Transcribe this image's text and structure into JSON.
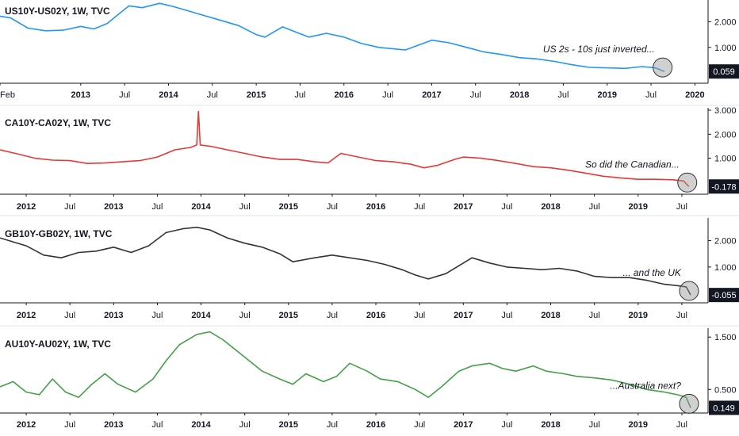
{
  "chart_data": [
    {
      "type": "line",
      "title": "US10Y-US02Y, 1W, TVC",
      "color": "#2196f3",
      "axis_ticks": [
        "2.000",
        "1.000"
      ],
      "axis_tick_values": [
        2.0,
        1.0
      ],
      "ylim": [
        -0.4,
        2.85
      ],
      "last_value_label": "0.059",
      "last_value": 0.059,
      "annotation": "US 2s - 10s just inverted...",
      "x_labels": [
        "Feb",
        "2013",
        "Jul",
        "2014",
        "Jul",
        "2015",
        "Jul",
        "2016",
        "Jul",
        "2017",
        "Jul",
        "2018",
        "Jul",
        "2019",
        "Jul",
        "2020"
      ],
      "x_label_dates": [
        2012.08,
        2013.0,
        2013.5,
        2014.0,
        2014.5,
        2015.0,
        2015.5,
        2016.0,
        2016.5,
        2017.0,
        2017.5,
        2018.0,
        2018.5,
        2019.0,
        2019.5,
        2020.0
      ],
      "xlim": [
        2012.08,
        2020.15
      ],
      "x": [
        2012.08,
        2012.2,
        2012.4,
        2012.6,
        2012.8,
        2013.0,
        2013.15,
        2013.3,
        2013.45,
        2013.55,
        2013.7,
        2013.9,
        2014.05,
        2014.2,
        2014.4,
        2014.6,
        2014.8,
        2015.0,
        2015.1,
        2015.3,
        2015.45,
        2015.6,
        2015.8,
        2016.0,
        2016.2,
        2016.4,
        2016.55,
        2016.7,
        2016.9,
        2017.0,
        2017.2,
        2017.4,
        2017.6,
        2017.8,
        2018.0,
        2018.2,
        2018.4,
        2018.6,
        2018.8,
        2019.0,
        2019.2,
        2019.4,
        2019.55,
        2019.65
      ],
      "values": [
        2.22,
        2.15,
        1.75,
        1.65,
        1.67,
        1.82,
        1.72,
        1.93,
        2.35,
        2.62,
        2.55,
        2.72,
        2.6,
        2.45,
        2.25,
        2.05,
        1.85,
        1.5,
        1.4,
        1.8,
        1.6,
        1.4,
        1.55,
        1.4,
        1.15,
        1.0,
        0.95,
        0.9,
        1.15,
        1.28,
        1.18,
        1.0,
        0.82,
        0.72,
        0.6,
        0.55,
        0.45,
        0.32,
        0.22,
        0.2,
        0.18,
        0.25,
        0.2,
        0.06
      ]
    },
    {
      "type": "line",
      "title": "CA10Y-CA02Y, 1W, TVC",
      "color": "#e53935",
      "axis_ticks": [
        "3.000",
        "2.000",
        "1.000"
      ],
      "axis_tick_values": [
        3.0,
        2.0,
        1.0
      ],
      "ylim": [
        -0.5,
        3.1
      ],
      "last_value_label": "-0.178",
      "last_value": -0.178,
      "annotation": "So did the Canadian...",
      "x_labels": [
        "2012",
        "Jul",
        "2013",
        "Jul",
        "2014",
        "Jul",
        "2015",
        "Jul",
        "2016",
        "Jul",
        "2017",
        "Jul",
        "2018",
        "Jul",
        "2019",
        "Jul"
      ],
      "x_label_dates": [
        2012.0,
        2012.5,
        2013.0,
        2013.5,
        2014.0,
        2014.5,
        2015.0,
        2015.5,
        2016.0,
        2016.5,
        2017.0,
        2017.5,
        2018.0,
        2018.5,
        2019.0,
        2019.5
      ],
      "xlim": [
        2011.7,
        2019.8
      ],
      "x": [
        2011.7,
        2011.9,
        2012.1,
        2012.3,
        2012.5,
        2012.7,
        2012.9,
        2013.1,
        2013.3,
        2013.5,
        2013.7,
        2013.88,
        2013.95,
        2013.97,
        2013.99,
        2014.1,
        2014.3,
        2014.5,
        2014.7,
        2014.9,
        2015.1,
        2015.3,
        2015.45,
        2015.6,
        2015.8,
        2016.0,
        2016.2,
        2016.4,
        2016.55,
        2016.7,
        2016.9,
        2017.0,
        2017.2,
        2017.4,
        2017.6,
        2017.8,
        2018.0,
        2018.2,
        2018.4,
        2018.6,
        2018.8,
        2019.0,
        2019.2,
        2019.4,
        2019.52,
        2019.58
      ],
      "values": [
        1.35,
        1.18,
        1.0,
        0.92,
        0.9,
        0.78,
        0.8,
        0.85,
        0.9,
        1.05,
        1.35,
        1.45,
        1.55,
        2.95,
        1.55,
        1.5,
        1.35,
        1.2,
        1.05,
        0.95,
        0.95,
        0.85,
        0.8,
        1.2,
        1.05,
        0.9,
        0.85,
        0.75,
        0.6,
        0.7,
        0.95,
        1.05,
        1.0,
        0.9,
        0.78,
        0.65,
        0.6,
        0.5,
        0.38,
        0.25,
        0.18,
        0.12,
        0.12,
        0.1,
        0.05,
        -0.18
      ]
    },
    {
      "type": "line",
      "title": "GB10Y-GB02Y, 1W, TVC",
      "color": "#333333",
      "axis_ticks": [
        "2.000",
        "1.000"
      ],
      "axis_tick_values": [
        2.0,
        1.0
      ],
      "ylim": [
        -0.35,
        2.85
      ],
      "last_value_label": "-0.055",
      "last_value": -0.055,
      "annotation": "... and the UK",
      "x_labels": [
        "2012",
        "Jul",
        "2013",
        "Jul",
        "2014",
        "Jul",
        "2015",
        "Jul",
        "2016",
        "Jul",
        "2017",
        "Jul",
        "2018",
        "Jul",
        "2019",
        "Jul"
      ],
      "x_label_dates": [
        2012.0,
        2012.5,
        2013.0,
        2013.5,
        2014.0,
        2014.5,
        2015.0,
        2015.5,
        2016.0,
        2016.5,
        2017.0,
        2017.5,
        2018.0,
        2018.5,
        2019.0,
        2019.5
      ],
      "xlim": [
        2011.7,
        2019.8
      ],
      "x": [
        2011.7,
        2011.85,
        2012.0,
        2012.2,
        2012.4,
        2012.6,
        2012.8,
        2013.0,
        2013.2,
        2013.4,
        2013.6,
        2013.8,
        2013.95,
        2014.1,
        2014.3,
        2014.5,
        2014.7,
        2014.9,
        2015.05,
        2015.3,
        2015.5,
        2015.7,
        2015.9,
        2016.1,
        2016.3,
        2016.45,
        2016.6,
        2016.8,
        2016.95,
        2017.1,
        2017.3,
        2017.5,
        2017.7,
        2017.9,
        2018.1,
        2018.3,
        2018.5,
        2018.7,
        2018.9,
        2019.1,
        2019.3,
        2019.45,
        2019.55,
        2019.6
      ],
      "values": [
        2.1,
        1.95,
        1.8,
        1.45,
        1.35,
        1.55,
        1.6,
        1.75,
        1.55,
        1.8,
        2.3,
        2.45,
        2.5,
        2.4,
        2.1,
        1.9,
        1.75,
        1.5,
        1.2,
        1.35,
        1.45,
        1.35,
        1.25,
        1.1,
        0.9,
        0.7,
        0.55,
        0.75,
        1.05,
        1.35,
        1.15,
        1.0,
        0.95,
        0.9,
        0.95,
        0.85,
        0.65,
        0.6,
        0.6,
        0.5,
        0.35,
        0.3,
        0.25,
        -0.05
      ]
    },
    {
      "type": "line",
      "title": "AU10Y-AU02Y, 1W, TVC",
      "color": "#43a047",
      "axis_ticks": [
        "1.500",
        "0.500"
      ],
      "axis_tick_values": [
        1.5,
        0.5
      ],
      "ylim": [
        0.05,
        1.67
      ],
      "last_value_label": "0.149",
      "last_value": 0.149,
      "annotation": "...Australia next?",
      "x_labels": [
        "2012",
        "Jul",
        "2013",
        "Jul",
        "2014",
        "Jul",
        "2015",
        "Jul",
        "2016",
        "Jul",
        "2017",
        "Jul",
        "2018",
        "Jul",
        "2019",
        "Jul"
      ],
      "x_label_dates": [
        2012.0,
        2012.5,
        2013.0,
        2013.5,
        2014.0,
        2014.5,
        2015.0,
        2015.5,
        2016.0,
        2016.5,
        2017.0,
        2017.5,
        2018.0,
        2018.5,
        2019.0,
        2019.5
      ],
      "xlim": [
        2011.7,
        2019.8
      ],
      "x": [
        2011.7,
        2011.85,
        2012.0,
        2012.15,
        2012.3,
        2012.45,
        2012.6,
        2012.75,
        2012.9,
        2013.05,
        2013.25,
        2013.45,
        2013.6,
        2013.75,
        2013.95,
        2014.1,
        2014.25,
        2014.4,
        2014.55,
        2014.7,
        2014.9,
        2015.05,
        2015.2,
        2015.4,
        2015.55,
        2015.7,
        2015.9,
        2016.05,
        2016.25,
        2016.45,
        2016.6,
        2016.75,
        2016.95,
        2017.1,
        2017.3,
        2017.45,
        2017.6,
        2017.8,
        2017.95,
        2018.15,
        2018.3,
        2018.5,
        2018.7,
        2018.9,
        2019.1,
        2019.3,
        2019.45,
        2019.55,
        2019.6
      ],
      "values": [
        0.55,
        0.65,
        0.45,
        0.4,
        0.7,
        0.45,
        0.35,
        0.6,
        0.8,
        0.6,
        0.45,
        0.7,
        1.05,
        1.35,
        1.55,
        1.6,
        1.45,
        1.25,
        1.05,
        0.85,
        0.7,
        0.6,
        0.8,
        0.65,
        0.75,
        1.0,
        0.85,
        0.7,
        0.65,
        0.5,
        0.35,
        0.55,
        0.85,
        0.95,
        1.0,
        0.9,
        0.85,
        0.95,
        0.85,
        0.8,
        0.75,
        0.72,
        0.68,
        0.6,
        0.5,
        0.45,
        0.4,
        0.35,
        0.15
      ]
    }
  ]
}
